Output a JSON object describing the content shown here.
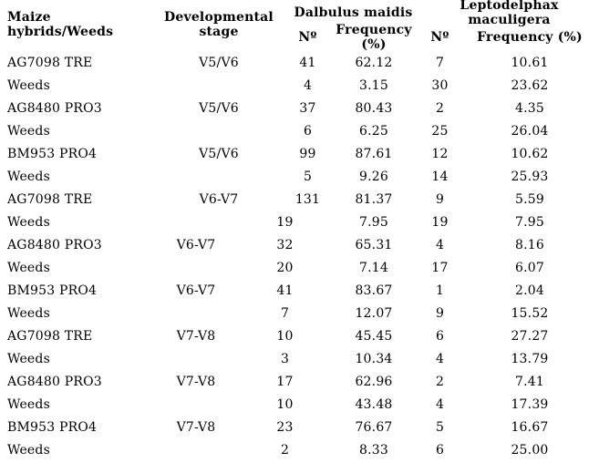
{
  "table": {
    "col1_header": "Maize hybrids/Weeds",
    "col2_header": "Developmental stage",
    "groups": [
      {
        "label": "Dalbulus maidis",
        "sub_count": "Nº",
        "sub_frequency": "Frequency (%)"
      },
      {
        "label": "Leptodelphax maculigera",
        "sub_count": "Nº",
        "sub_frequency": "Frequency (%)"
      }
    ],
    "rows": [
      {
        "name": "AG7098 TRE",
        "stage": "V5/V6",
        "dm_n": "41",
        "dm_freq": "62.12",
        "lm_n": "7",
        "lm_freq": "10.61"
      },
      {
        "name": "Weeds",
        "stage": "",
        "dm_n": "4",
        "dm_freq": "3.15",
        "lm_n": "30",
        "lm_freq": "23.62"
      },
      {
        "name": "AG8480 PRO3",
        "stage": "V5/V6",
        "dm_n": "37",
        "dm_freq": "80.43",
        "lm_n": "2",
        "lm_freq": "4.35"
      },
      {
        "name": "Weeds",
        "stage": "",
        "dm_n": "6",
        "dm_freq": "6.25",
        "lm_n": "25",
        "lm_freq": "26.04"
      },
      {
        "name": "BM953 PRO4",
        "stage": "V5/V6",
        "dm_n": "99",
        "dm_freq": "87.61",
        "lm_n": "12",
        "lm_freq": "10.62"
      },
      {
        "name": "Weeds",
        "stage": "",
        "dm_n": "5",
        "dm_freq": "9.26",
        "lm_n": "14",
        "lm_freq": "25.93"
      },
      {
        "name": "AG7098 TRE",
        "stage": "V6-V7",
        "dm_n": "131",
        "dm_freq": "81.37",
        "lm_n": "9",
        "lm_freq": "5.59"
      },
      {
        "name": "Weeds",
        "stage": "",
        "dm_n": "19",
        "dm_freq": "7.95",
        "lm_n": "19",
        "lm_freq": "7.95"
      },
      {
        "name": "AG8480 PRO3",
        "stage": "V6-V7",
        "dm_n": "32",
        "dm_freq": "65.31",
        "lm_n": "4",
        "lm_freq": "8.16"
      },
      {
        "name": "Weeds",
        "stage": "",
        "dm_n": "20",
        "dm_freq": "7.14",
        "lm_n": "17",
        "lm_freq": "6.07"
      },
      {
        "name": "BM953 PRO4",
        "stage": "V6-V7",
        "dm_n": "41",
        "dm_freq": "83.67",
        "lm_n": "1",
        "lm_freq": "2.04"
      },
      {
        "name": "Weeds",
        "stage": "",
        "dm_n": "7",
        "dm_freq": "12.07",
        "lm_n": "9",
        "lm_freq": "15.52"
      },
      {
        "name": "AG7098 TRE",
        "stage": "V7-V8",
        "dm_n": "10",
        "dm_freq": "45.45",
        "lm_n": "6",
        "lm_freq": "27.27"
      },
      {
        "name": "Weeds",
        "stage": "",
        "dm_n": "3",
        "dm_freq": "10.34",
        "lm_n": "4",
        "lm_freq": "13.79"
      },
      {
        "name": "AG8480 PRO3",
        "stage": "V7-V8",
        "dm_n": "17",
        "dm_freq": "62.96",
        "lm_n": "2",
        "lm_freq": "7.41"
      },
      {
        "name": "Weeds",
        "stage": "",
        "dm_n": "10",
        "dm_freq": "43.48",
        "lm_n": "4",
        "lm_freq": "17.39"
      },
      {
        "name": "BM953 PRO4",
        "stage": "V7-V8",
        "dm_n": "23",
        "dm_freq": "76.67",
        "lm_n": "5",
        "lm_freq": "16.67"
      },
      {
        "name": "Weeds",
        "stage": "",
        "dm_n": "2",
        "dm_freq": "8.33",
        "lm_n": "6",
        "lm_freq": "25.00"
      }
    ],
    "text_color": "#000000",
    "background_color": "#ffffff"
  }
}
